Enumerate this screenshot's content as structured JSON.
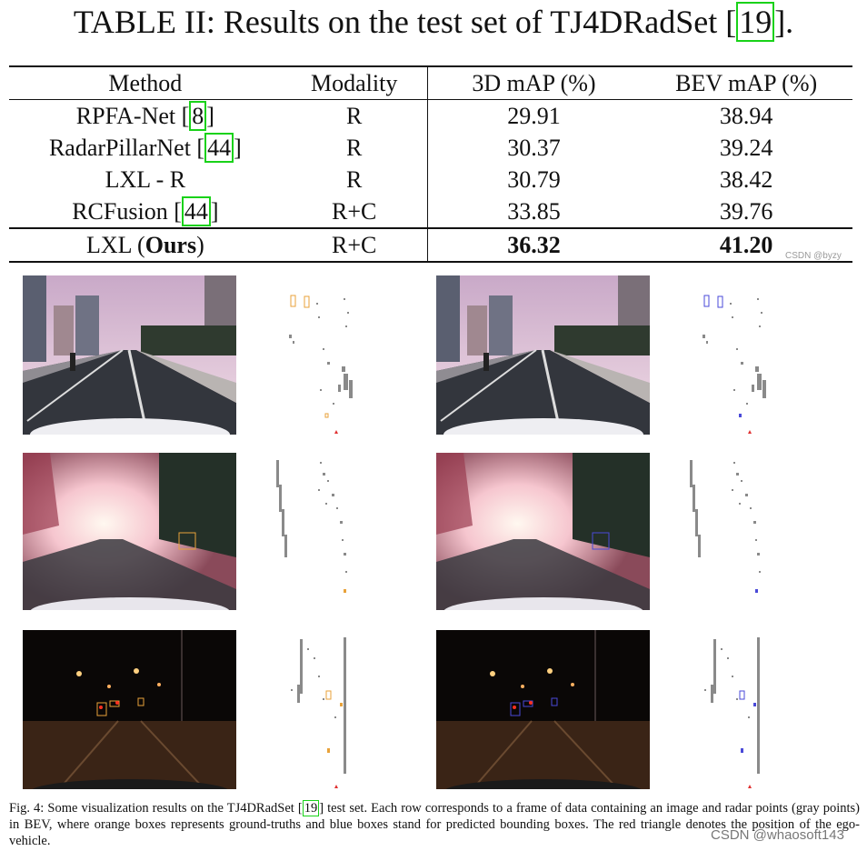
{
  "table": {
    "title_prefix": "TABLE II: Results on the test set of TJ4DRadSet [",
    "title_ref": "19",
    "title_suffix": "].",
    "headers": [
      "Method",
      "Modality",
      "3D mAP (%)",
      "BEV mAP (%)"
    ],
    "rows": [
      {
        "method": "RPFA-Net [",
        "ref": "8",
        "close": "]",
        "modality": "R",
        "map3d": "29.91",
        "bev": "38.94"
      },
      {
        "method": "RadarPillarNet [",
        "ref": "44",
        "close": "]",
        "modality": "R",
        "map3d": "30.37",
        "bev": "39.24"
      },
      {
        "method": "LXL - R",
        "ref": "",
        "close": "",
        "modality": "R",
        "map3d": "30.79",
        "bev": "38.42"
      },
      {
        "method": "RCFusion [",
        "ref": "44",
        "close": "]",
        "modality": "R+C",
        "map3d": "33.85",
        "bev": "39.76"
      }
    ],
    "ours": {
      "method": "LXL (",
      "method_bold": "Ours",
      "method_close": ")",
      "modality": "R+C",
      "map3d": "36.32",
      "bev": "41.20"
    }
  },
  "watermark_small": "CSDN @byzy",
  "figure": {
    "caption_part1": "Fig. 4: Some visualization results on the TJ4DRadSet [",
    "caption_ref": "19",
    "caption_part2": "] test set. Each row corresponds to a frame of data containing an image and radar points (gray points) in BEV, where orange boxes represents ground-truths and blue boxes stand for predicted bounding boxes. The red triangle denotes the position of the ego-vehicle.",
    "gt_color": "#e8a23a",
    "pred_color": "#4a4ad8",
    "ego_color": "#e03030",
    "radar_color": "#8a8a8a"
  },
  "watermark_big": "CSDN @whaosoft143"
}
